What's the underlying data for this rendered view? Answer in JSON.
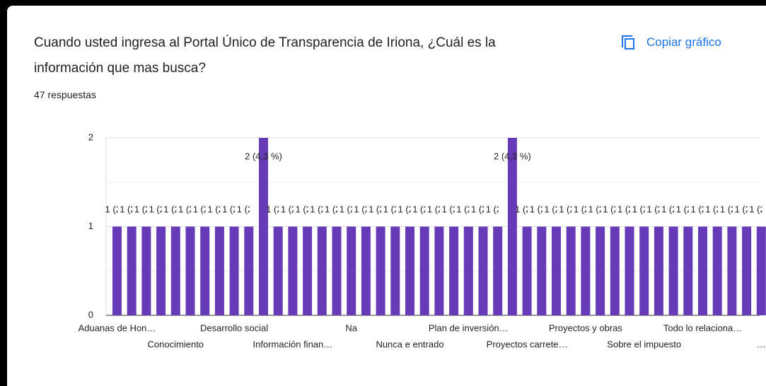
{
  "header": {
    "title_line1": "Cuando usted ingresa al  Portal Único de Transparencia de Iriona, ¿Cuál es la",
    "title_line2": "información que mas busca?",
    "responses": "47 respuestas",
    "copy_button": "Copiar gráfico"
  },
  "chart_data": {
    "type": "bar",
    "color": "#673ab7",
    "categories": [
      "Aduanas de Hon…",
      null,
      null,
      null,
      "Conocimiento",
      null,
      null,
      null,
      "Desarrollo social",
      null,
      null,
      null,
      "Información finan…",
      null,
      null,
      null,
      "Na",
      null,
      null,
      null,
      "Nunca e entrado",
      null,
      null,
      null,
      "Plan de inversión…",
      null,
      null,
      null,
      "Proyectos carrete…",
      null,
      null,
      null,
      "Proyectos y obras",
      null,
      null,
      null,
      "Sobre el impuesto",
      null,
      null,
      null,
      "Todo lo relaciona…",
      null,
      null,
      null,
      "…"
    ],
    "values": [
      1,
      1,
      1,
      1,
      1,
      1,
      1,
      1,
      1,
      1,
      2,
      1,
      1,
      1,
      1,
      1,
      1,
      1,
      1,
      1,
      1,
      1,
      1,
      1,
      1,
      1,
      1,
      2,
      1,
      1,
      1,
      1,
      1,
      1,
      1,
      1,
      1,
      1,
      1,
      1,
      1,
      1,
      1,
      1,
      1
    ],
    "value_labels": [
      "1 (2,1 %)",
      "1 (2,1 %)",
      "1 (2,1 %)",
      "1 (2,1 %)",
      "1 (2,1 %)",
      "1 (2,1 %)",
      "1 (2,1 %)",
      "1 (2,1 %)",
      "1 (2,1 %)",
      "1 (2,1 %)",
      "2 (4,3 %)",
      "1 (2,1 %)",
      "1 (2,1 %)",
      "1 (2,1 %)",
      "1 (2,1 %)",
      "1 (2,1 %)",
      "1 (2,1 %)",
      "1 (2,1 %)",
      "1 (2,1 %)",
      "1 (2,1 %)",
      "1 (2,1 %)",
      "1 (2,1 %)",
      "1 (2,1 %)",
      "1 (2,1 %)",
      "1 (2,1 %)",
      "1 (2,1 %)",
      "1 (2,1 %)",
      "2 (4,3 %)",
      "1 (2,1 %)",
      "1 (2,1 %)",
      "1 (2,1 %)",
      "1 (2,1 %)",
      "1 (2,1 %)",
      "1 (2,1 %)",
      "1 (2,1 %)",
      "1 (2,1 %)",
      "1 (2,1 %)",
      "1 (2,1 %)",
      "1 (2,1 %)",
      "1 (2,1 %)",
      "1 (2,1 %)",
      "1 (2,1 %)",
      "1 (2,1 %)",
      "1 (2,1 %)",
      "1 (2,1 %)"
    ],
    "ylim": [
      0,
      2
    ],
    "yticks": [
      0,
      1,
      2
    ],
    "minor_yticks": [
      0.5,
      1.5
    ],
    "grid": true
  }
}
